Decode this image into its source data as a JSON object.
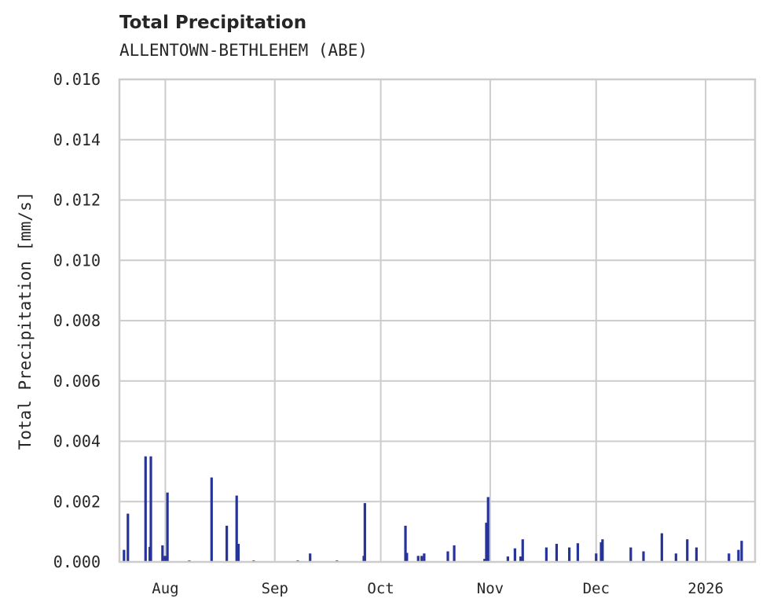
{
  "chart_data": {
    "type": "bar",
    "title": "Total Precipitation",
    "subtitle": "ALLENTOWN-BETHLEHEM (ABE)",
    "xlabel": "",
    "ylabel": "Total Precipitation [mm/s]",
    "ylim": [
      0,
      0.016
    ],
    "yticks": [
      "0.000",
      "0.002",
      "0.004",
      "0.006",
      "0.008",
      "0.010",
      "0.012",
      "0.014",
      "0.016"
    ],
    "xticks": [
      "Aug",
      "Sep",
      "Oct",
      "Nov",
      "Dec",
      "2026"
    ],
    "grid": true,
    "legend": null,
    "bar_color": "#26349a",
    "grid_color": "#cccccc",
    "x_range_days": [
      0,
      180
    ],
    "x_tick_days": [
      13,
      44,
      74,
      105,
      135,
      166
    ],
    "series": [
      {
        "name": "Total Precipitation",
        "points": [
          {
            "day": 1.3,
            "value": 0.0004
          },
          {
            "day": 2.4,
            "value": 0.0016
          },
          {
            "day": 7.4,
            "value": 0.0035
          },
          {
            "day": 8.6,
            "value": 0.0005
          },
          {
            "day": 8.9,
            "value": 0.0035
          },
          {
            "day": 12.2,
            "value": 0.00055
          },
          {
            "day": 12.9,
            "value": 0.0002
          },
          {
            "day": 13.6,
            "value": 0.0023
          },
          {
            "day": 19.8,
            "value": 5e-05
          },
          {
            "day": 26.1,
            "value": 0.0028
          },
          {
            "day": 30.4,
            "value": 0.0012
          },
          {
            "day": 33.2,
            "value": 0.0022
          },
          {
            "day": 33.7,
            "value": 0.0006
          },
          {
            "day": 38.0,
            "value": 5e-05
          },
          {
            "day": 50.5,
            "value": 5e-05
          },
          {
            "day": 54.0,
            "value": 0.00028
          },
          {
            "day": 61.6,
            "value": 5e-05
          },
          {
            "day": 69.2,
            "value": 0.0002
          },
          {
            "day": 69.5,
            "value": 0.00195
          },
          {
            "day": 81.0,
            "value": 0.0012
          },
          {
            "day": 81.4,
            "value": 0.0003
          },
          {
            "day": 84.6,
            "value": 0.0002
          },
          {
            "day": 85.6,
            "value": 0.0002
          },
          {
            "day": 86.3,
            "value": 0.00028
          },
          {
            "day": 93.0,
            "value": 0.00035
          },
          {
            "day": 94.8,
            "value": 0.00055
          },
          {
            "day": 103.4,
            "value": 0.0001
          },
          {
            "day": 103.9,
            "value": 0.0013
          },
          {
            "day": 104.4,
            "value": 0.00215
          },
          {
            "day": 110.0,
            "value": 0.00018
          },
          {
            "day": 112.0,
            "value": 0.00045
          },
          {
            "day": 113.6,
            "value": 0.00018
          },
          {
            "day": 114.2,
            "value": 0.00075
          },
          {
            "day": 120.9,
            "value": 0.00048
          },
          {
            "day": 123.8,
            "value": 0.0006
          },
          {
            "day": 127.4,
            "value": 0.00048
          },
          {
            "day": 129.8,
            "value": 0.00062
          },
          {
            "day": 135.0,
            "value": 0.00028
          },
          {
            "day": 136.4,
            "value": 0.00065
          },
          {
            "day": 136.8,
            "value": 0.00075
          },
          {
            "day": 144.8,
            "value": 0.00048
          },
          {
            "day": 148.4,
            "value": 0.00035
          },
          {
            "day": 153.6,
            "value": 0.00095
          },
          {
            "day": 157.6,
            "value": 0.00028
          },
          {
            "day": 160.8,
            "value": 0.00075
          },
          {
            "day": 163.4,
            "value": 0.00048
          },
          {
            "day": 172.6,
            "value": 0.00028
          },
          {
            "day": 175.3,
            "value": 0.0004
          },
          {
            "day": 176.2,
            "value": 0.0007
          }
        ]
      }
    ]
  }
}
